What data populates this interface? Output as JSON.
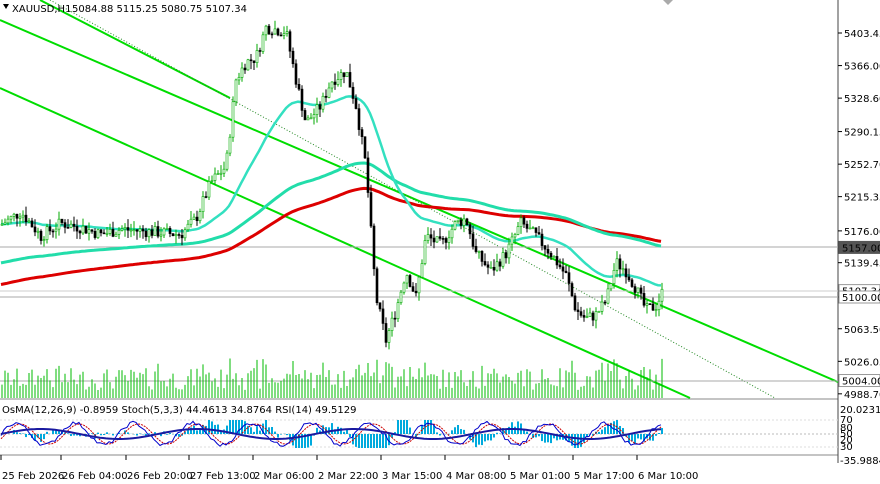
{
  "header": {
    "symbol_info": "XAUUSD,H1",
    "ohlc": "5084.88 5115.25 5080.75 5107.34"
  },
  "price_axis": {
    "ticks": [
      "5403.45",
      "5366.00",
      "5328.60",
      "5290.15",
      "5252.70",
      "5215.35",
      "5176.00",
      "5139.45",
      "5100.00",
      "5063.50",
      "5026.05",
      "4988.70"
    ],
    "tick_values": [
      5403.45,
      5366.0,
      5328.6,
      5290.15,
      5252.7,
      5215.35,
      5176.0,
      5139.45,
      5100.0,
      5063.5,
      5026.05,
      4988.7
    ],
    "level_tags": [
      {
        "text": "5157.00",
        "value": 5157.0,
        "style": "dark"
      },
      {
        "text": "5107.34",
        "value": 5107.34,
        "style": "partial"
      },
      {
        "text": "5100.00",
        "value": 5100.0,
        "style": "light"
      },
      {
        "text": "5004.00",
        "value": 5004.0,
        "style": "light"
      }
    ]
  },
  "indicator": {
    "label": "OsMA(12,26,9) -0.8959   Stoch(5,3,3) 44.4613 34.8764   RSI(14) 49.5129",
    "axis_ticks": [
      "20.0231",
      "70",
      "50",
      "30",
      "-35.9884"
    ],
    "extra_ticks": [
      "80",
      "20"
    ]
  },
  "time_axis": [
    "25 Feb 2026",
    "26 Feb 04:00",
    "26 Feb 20:00",
    "27 Feb 13:00",
    "2 Mar 06:00",
    "2 Mar 22:00",
    "3 Mar 15:00",
    "4 Mar 08:00",
    "5 Mar 01:00",
    "5 Mar 17:00",
    "6 Mar 10:00"
  ],
  "colors": {
    "ema_red": "#dd0000",
    "ema_cyan": "#22ddaa",
    "ema_fast": "#33e0c0",
    "channel_green": "#00dd00",
    "bull_candle": "#00aa00",
    "bear_candle": "#000000",
    "volume": "#00bb00",
    "osma": "#00aadd",
    "stoch_main": "#0000cc",
    "stoch_signal": "#cc0000"
  }
}
